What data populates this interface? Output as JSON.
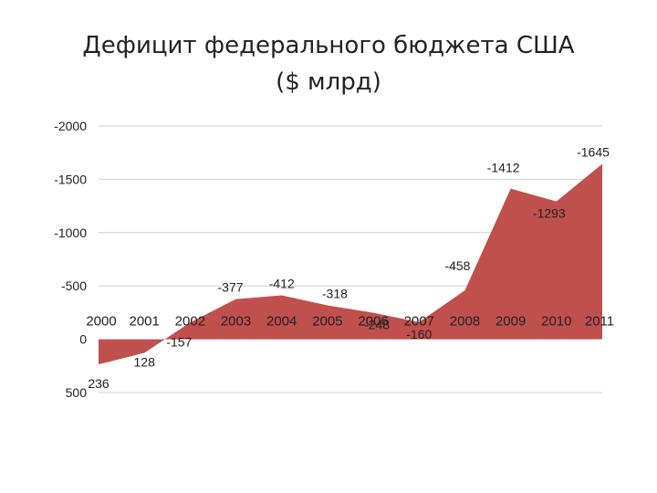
{
  "chart_data": {
    "type": "area",
    "title_lines": [
      "Дефицит федерального бюджета США",
      "($ млрд)"
    ],
    "categories": [
      "2000",
      "2001",
      "2002",
      "2003",
      "2004",
      "2005",
      "2006",
      "2007",
      "2008",
      "2009",
      "2010",
      "2011"
    ],
    "values": [
      236,
      128,
      -157,
      -377,
      -412,
      -318,
      -248,
      -160,
      -458,
      -1412,
      -1293,
      -1645
    ],
    "data_labels": [
      "236",
      "128",
      "-157",
      "-377",
      "-412",
      "-318",
      "-248",
      "-160",
      "-458",
      "-1412",
      "-1293",
      "-1645"
    ],
    "yticks": [
      -2000,
      -1500,
      -1000,
      -500,
      0,
      500
    ],
    "ytick_labels": [
      "-2000",
      "-1500",
      "-1000",
      "-500",
      "0",
      "500"
    ],
    "ylim": [
      -2000,
      500
    ],
    "y_reversed": true,
    "grid": true,
    "legend": "none",
    "color": "#c0504d"
  }
}
